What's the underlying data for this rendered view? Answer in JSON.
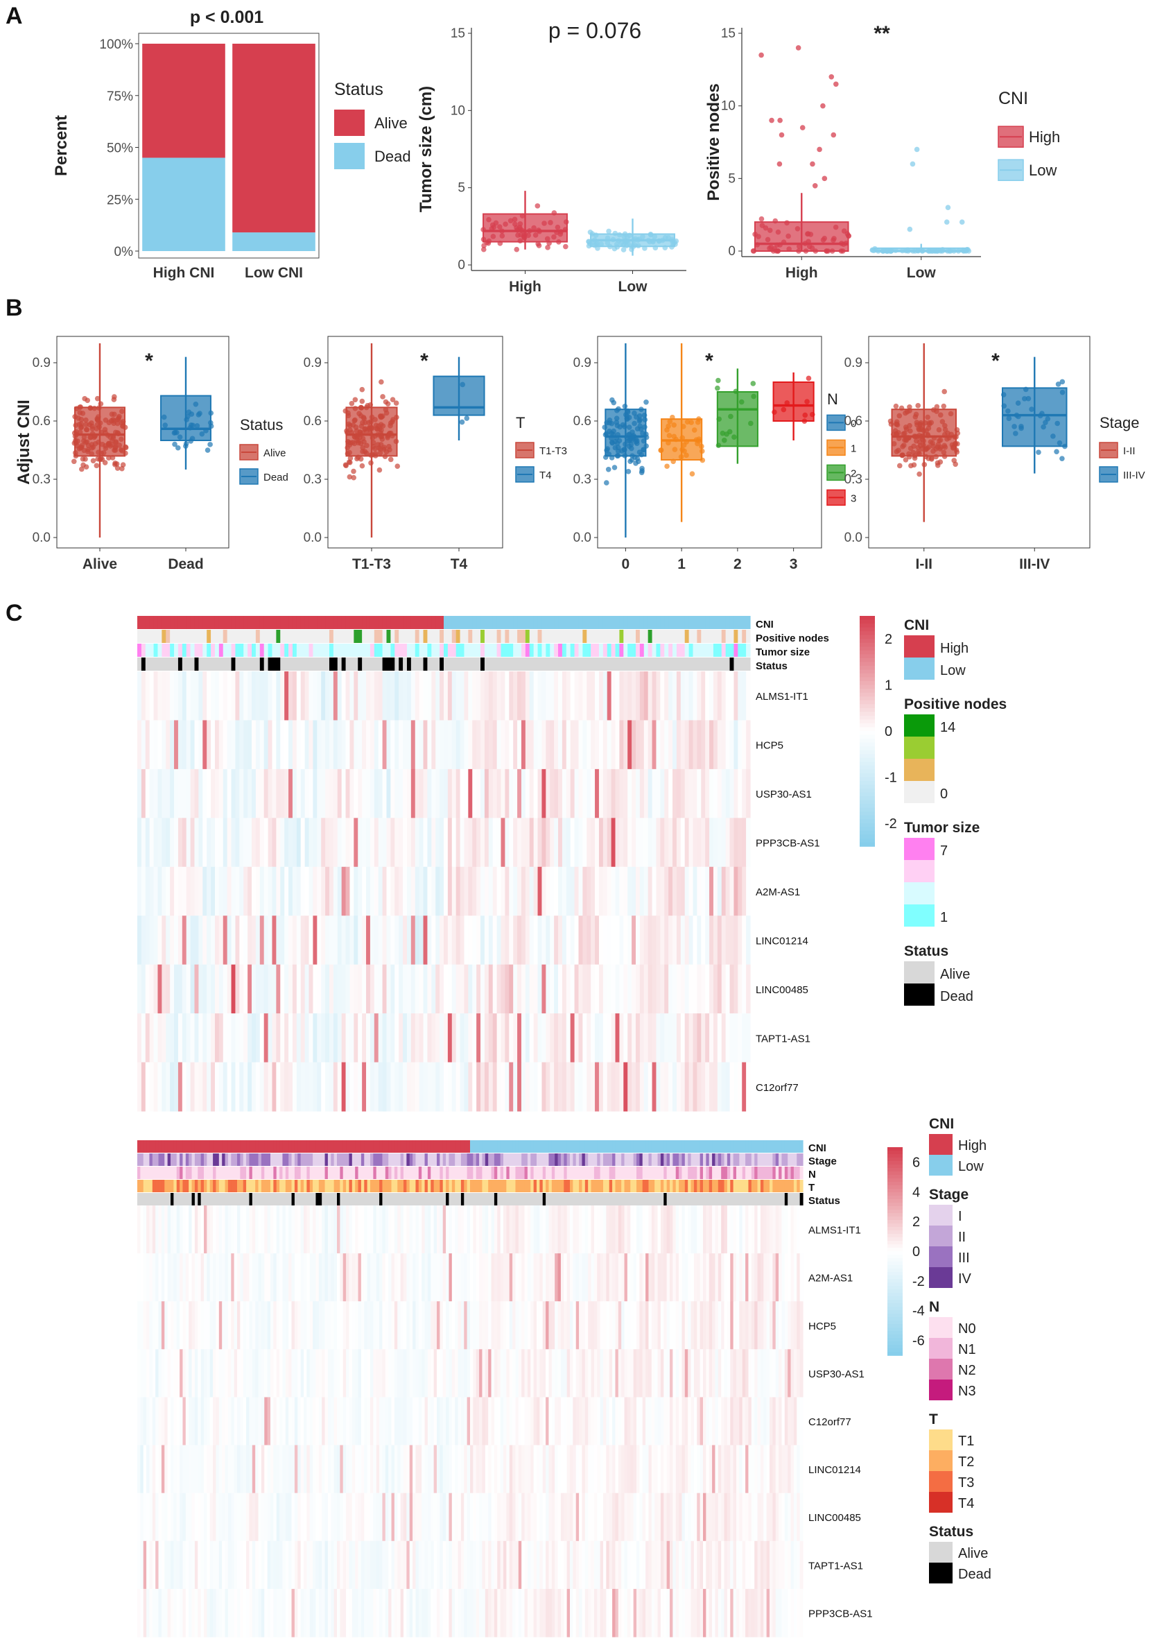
{
  "panels": {
    "a": "A",
    "b": "B",
    "c": "C"
  },
  "colors": {
    "high": "#d63f4f",
    "low": "#87ceeb",
    "alive": "#d8d8d8",
    "dead": "#000000",
    "b_red": "#c9473b",
    "b_blue": "#1f78b4",
    "b_orange": "#f58518",
    "b_green": "#33a02c"
  },
  "chart_data": [
    {
      "id": "a1",
      "type": "bar",
      "title": "p < 0.001",
      "ylabel": "Percent",
      "ylim": [
        0,
        100
      ],
      "yticks": [
        "0%",
        "25%",
        "50%",
        "75%",
        "100%"
      ],
      "categories": [
        "High CNI",
        "Low CNI"
      ],
      "series": [
        {
          "name": "Dead",
          "values": [
            45,
            9
          ]
        },
        {
          "name": "Alive",
          "values": [
            55,
            91
          ]
        }
      ],
      "legend": {
        "title": "Status",
        "items": [
          "Alive",
          "Dead"
        ]
      }
    },
    {
      "id": "a2",
      "type": "box",
      "title": "p = 0.076",
      "ylabel": "Tumor size (cm)",
      "ylim": [
        0,
        15
      ],
      "yticks": [
        "0",
        "5",
        "10",
        "15"
      ],
      "categories": [
        "High",
        "Low"
      ],
      "boxes": [
        {
          "q1": 1.5,
          "median": 2.2,
          "q3": 3.3,
          "whisker_low": 1.0,
          "whisker_high": 4.8
        },
        {
          "q1": 1.2,
          "median": 1.6,
          "q3": 2.0,
          "whisker_low": 0.6,
          "whisker_high": 3.0
        }
      ]
    },
    {
      "id": "a3",
      "type": "box",
      "title": "**",
      "ylabel": "Positive nodes",
      "ylim": [
        0,
        15
      ],
      "yticks": [
        "0",
        "5",
        "10",
        "15"
      ],
      "categories": [
        "High",
        "Low"
      ],
      "boxes": [
        {
          "q1": 0,
          "median": 0.5,
          "q3": 2,
          "whisker_low": 0,
          "whisker_high": 4
        },
        {
          "q1": 0,
          "median": 0,
          "q3": 0.2,
          "whisker_low": 0,
          "whisker_high": 0.5
        }
      ],
      "outliers": [
        [
          14,
          13.5,
          12,
          11.5,
          10,
          9,
          9,
          8.5,
          8,
          8,
          7,
          6,
          6,
          5,
          4.5
        ],
        [
          7,
          6,
          3,
          2,
          2,
          1.5
        ]
      ],
      "legend": {
        "title": "CNI",
        "items": [
          "High",
          "Low"
        ]
      }
    },
    {
      "id": "b1",
      "type": "box",
      "ylabel": "Adjust CNI",
      "ylim": [
        0,
        1
      ],
      "yticks": [
        "0.0",
        "0.3",
        "0.6",
        "0.9"
      ],
      "annotation": "*",
      "categories": [
        "Alive",
        "Dead"
      ],
      "boxes": [
        {
          "q1": 0.42,
          "median": 0.53,
          "q3": 0.67,
          "whisker_low": 0.0,
          "whisker_high": 1.0
        },
        {
          "q1": 0.5,
          "median": 0.56,
          "q3": 0.73,
          "whisker_low": 0.35,
          "whisker_high": 0.93
        }
      ],
      "legend": {
        "title": "Status",
        "items": [
          "Alive",
          "Dead"
        ]
      }
    },
    {
      "id": "b2",
      "type": "box",
      "ylabel": "",
      "ylim": [
        0,
        1
      ],
      "yticks": [
        "0.0",
        "0.3",
        "0.6",
        "0.9"
      ],
      "annotation": "*",
      "categories": [
        "T1-T3",
        "T4"
      ],
      "boxes": [
        {
          "q1": 0.42,
          "median": 0.53,
          "q3": 0.67,
          "whisker_low": 0.0,
          "whisker_high": 1.0
        },
        {
          "q1": 0.63,
          "median": 0.67,
          "q3": 0.83,
          "whisker_low": 0.5,
          "whisker_high": 0.93
        }
      ],
      "legend": {
        "title": "T",
        "items": [
          "T1-T3",
          "T4"
        ]
      }
    },
    {
      "id": "b3",
      "type": "box",
      "ylabel": "",
      "ylim": [
        0,
        1
      ],
      "yticks": [
        "0.0",
        "0.3",
        "0.6",
        "0.9"
      ],
      "annotation": "*",
      "categories": [
        "0",
        "1",
        "2",
        "3"
      ],
      "boxes": [
        {
          "q1": 0.42,
          "median": 0.52,
          "q3": 0.66,
          "whisker_low": 0.0,
          "whisker_high": 1.0
        },
        {
          "q1": 0.4,
          "median": 0.5,
          "q3": 0.61,
          "whisker_low": 0.08,
          "whisker_high": 1.0
        },
        {
          "q1": 0.47,
          "median": 0.66,
          "q3": 0.75,
          "whisker_low": 0.38,
          "whisker_high": 0.87
        },
        {
          "q1": 0.6,
          "median": 0.68,
          "q3": 0.8,
          "whisker_low": 0.5,
          "whisker_high": 0.85
        }
      ],
      "legend": {
        "title": "N",
        "items": [
          "0",
          "1",
          "2",
          "3"
        ]
      }
    },
    {
      "id": "b4",
      "type": "box",
      "ylabel": "",
      "ylim": [
        0,
        1
      ],
      "yticks": [
        "0.0",
        "0.3",
        "0.6",
        "0.9"
      ],
      "annotation": "*",
      "categories": [
        "I-II",
        "III-IV"
      ],
      "boxes": [
        {
          "q1": 0.42,
          "median": 0.52,
          "q3": 0.66,
          "whisker_low": 0.08,
          "whisker_high": 1.0
        },
        {
          "q1": 0.47,
          "median": 0.63,
          "q3": 0.77,
          "whisker_low": 0.33,
          "whisker_high": 0.93
        }
      ],
      "legend": {
        "title": "Stage",
        "items": [
          "I-II",
          "III-IV"
        ]
      }
    },
    {
      "id": "c1",
      "type": "heatmap",
      "annotations": [
        "CNI",
        "Positive nodes",
        "Tumor size",
        "Status"
      ],
      "genes": [
        "ALMS1-IT1",
        "HCP5",
        "USP30-AS1",
        "PPP3CB-AS1",
        "A2M-AS1",
        "LINC01214",
        "LINC00485",
        "TAPT1-AS1",
        "C12orf77"
      ],
      "scale": {
        "ticks": [
          "2",
          "1",
          "0",
          "-1",
          "-2"
        ],
        "range": [
          -2.5,
          2.5
        ]
      },
      "legends": [
        {
          "title": "CNI",
          "items": [
            "High",
            "Low"
          ]
        },
        {
          "title": "Positive nodes",
          "items": [
            "14",
            "",
            "",
            "0"
          ]
        },
        {
          "title": "Tumor size",
          "items": [
            "7",
            "",
            "",
            "1"
          ]
        },
        {
          "title": "Status",
          "items": [
            "Alive",
            "Dead"
          ]
        }
      ]
    },
    {
      "id": "c2",
      "type": "heatmap",
      "annotations": [
        "CNI",
        "Stage",
        "N",
        "T",
        "Status"
      ],
      "genes": [
        "ALMS1-IT1",
        "A2M-AS1",
        "HCP5",
        "USP30-AS1",
        "C12orf77",
        "LINC01214",
        "LINC00485",
        "TAPT1-AS1",
        "PPP3CB-AS1"
      ],
      "scale": {
        "ticks": [
          "6",
          "4",
          "2",
          "0",
          "-2",
          "-4",
          "-6"
        ],
        "range": [
          -7,
          7
        ]
      },
      "legends": [
        {
          "title": "CNI",
          "items": [
            "High",
            "Low"
          ]
        },
        {
          "title": "Stage",
          "items": [
            "I",
            "II",
            "III",
            "IV"
          ]
        },
        {
          "title": "N",
          "items": [
            "N0",
            "N1",
            "N2",
            "N3"
          ]
        },
        {
          "title": "T",
          "items": [
            "T1",
            "T2",
            "T3",
            "T4"
          ]
        },
        {
          "title": "Status",
          "items": [
            "Alive",
            "Dead"
          ]
        }
      ]
    }
  ]
}
